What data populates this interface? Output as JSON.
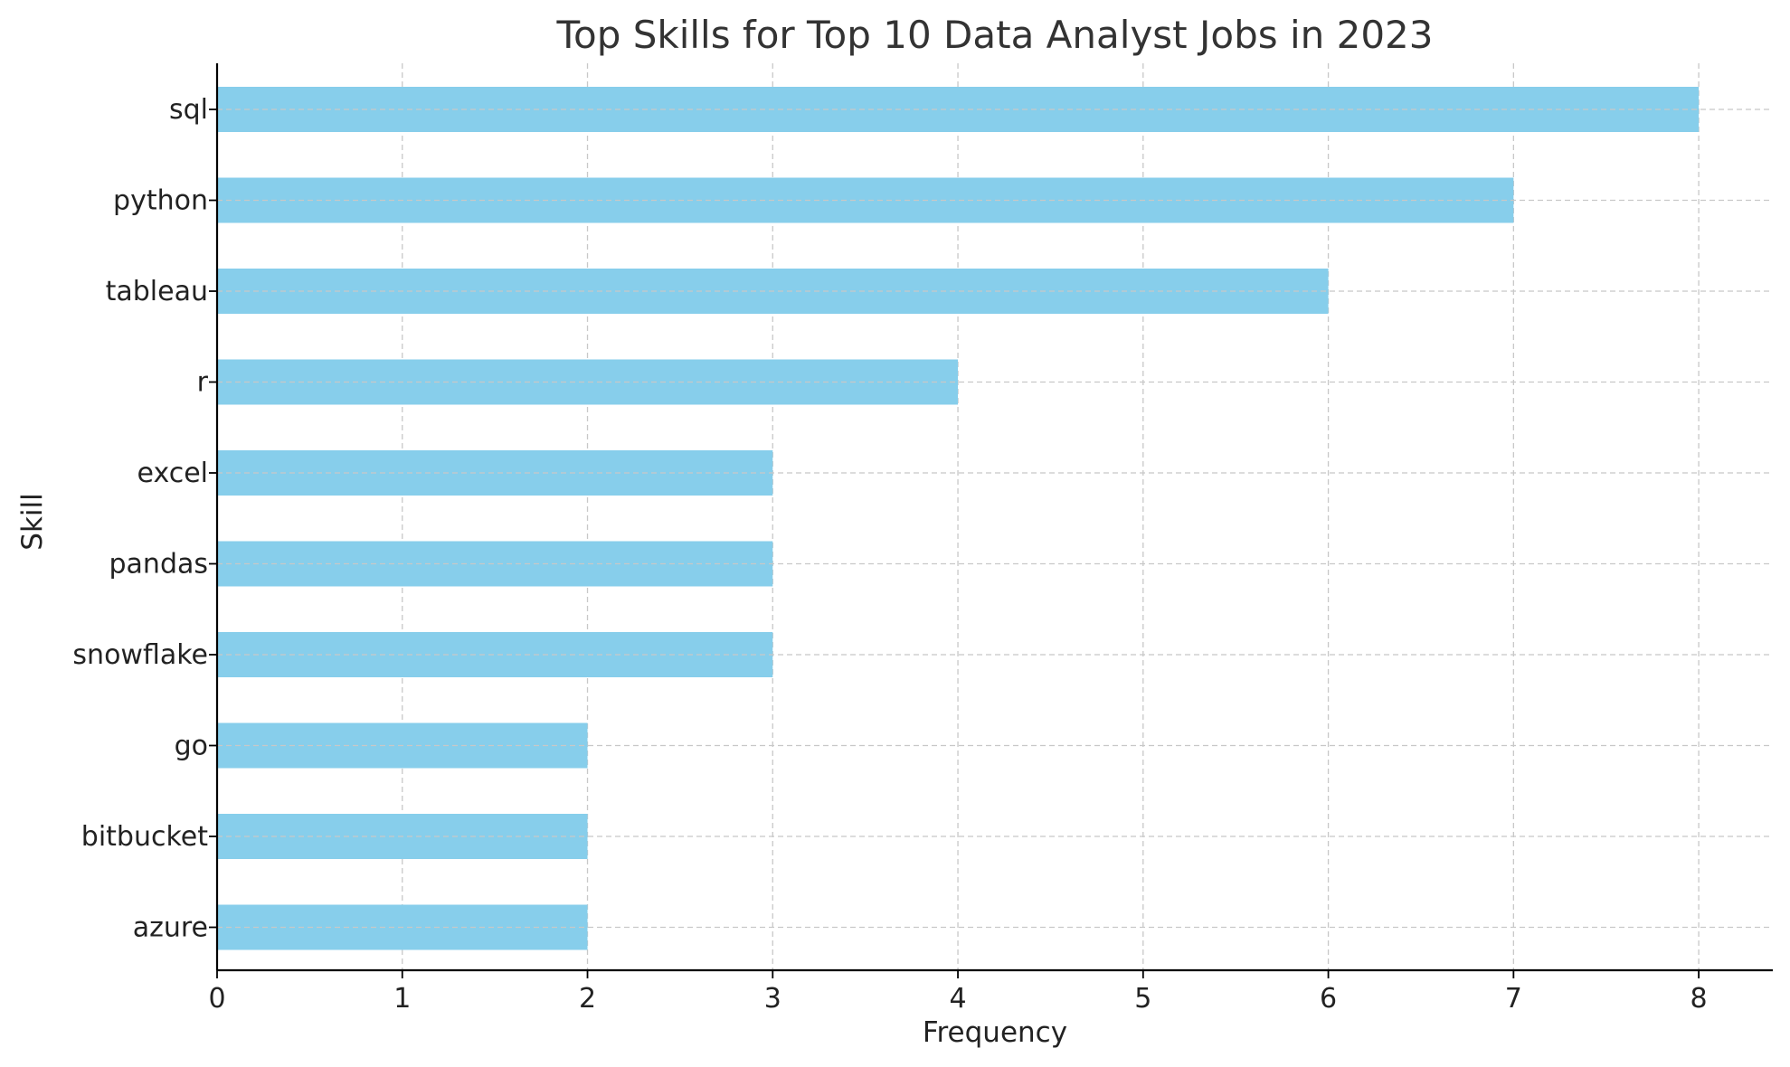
{
  "chart_data": {
    "type": "bar",
    "orientation": "horizontal",
    "title": "Top Skills for Top 10 Data Analyst Jobs in 2023",
    "xlabel": "Frequency",
    "ylabel": "Skill",
    "categories": [
      "sql",
      "python",
      "tableau",
      "r",
      "excel",
      "pandas",
      "snowflake",
      "go",
      "bitbucket",
      "azure"
    ],
    "values": [
      8,
      7,
      6,
      4,
      3,
      3,
      3,
      2,
      2,
      2
    ],
    "xlim": [
      0,
      8.4
    ],
    "xticks": [
      0,
      1,
      2,
      3,
      4,
      5,
      6,
      7,
      8
    ],
    "grid": true,
    "bar_color": "#87CEEB",
    "grid_color": "#c8c8c8",
    "axis_color": "#000000"
  }
}
